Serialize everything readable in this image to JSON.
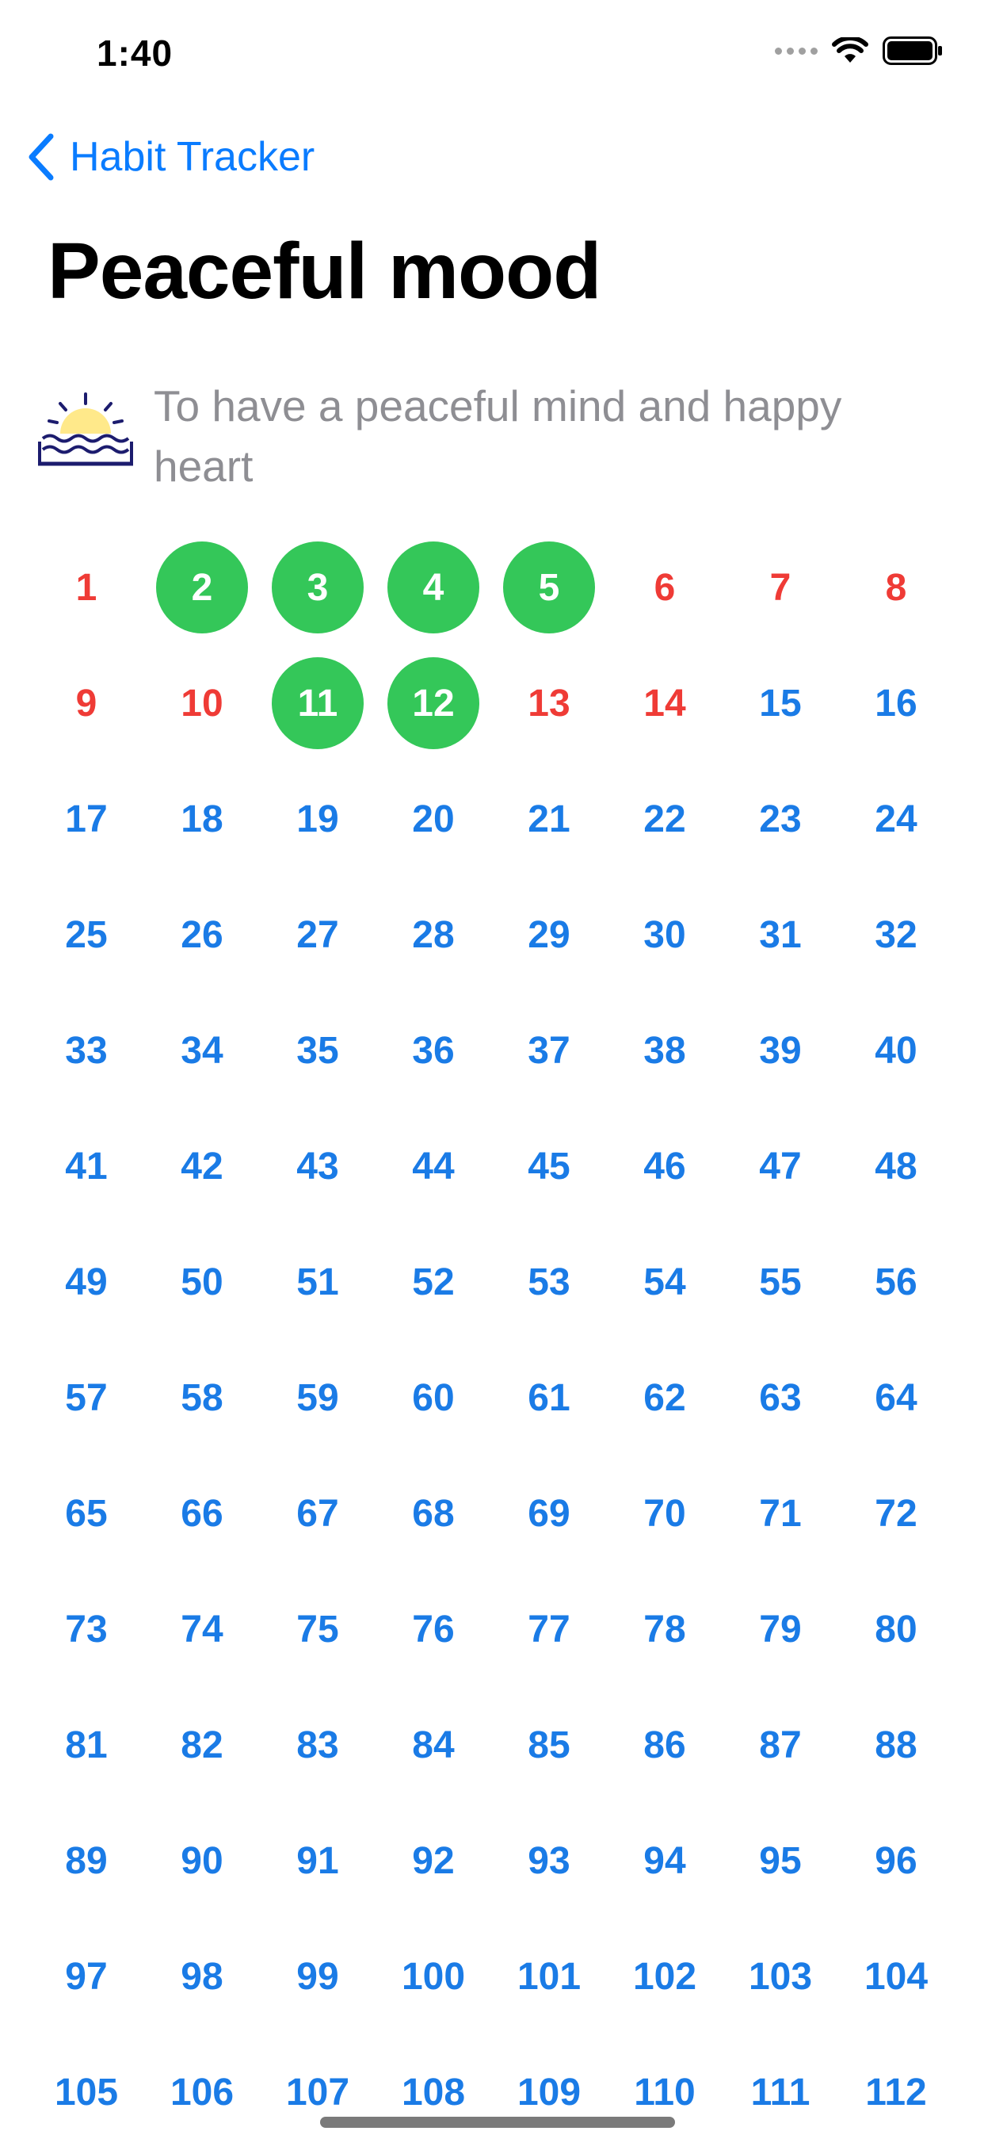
{
  "status": {
    "time": "1:40"
  },
  "nav": {
    "back_label": "Habit Tracker"
  },
  "habit": {
    "title": "Peaceful mood",
    "description": "To have a peaceful mind and happy heart",
    "icon": "sunrise-over-water-icon"
  },
  "colors": {
    "accent": "#1a7be6",
    "completed": "#34c759",
    "missed": "#ef3b36"
  },
  "grid": {
    "total_days": 112,
    "completed_days": [
      2,
      3,
      4,
      5,
      11,
      12
    ],
    "missed_days": [
      1,
      6,
      7,
      8,
      9,
      10,
      13,
      14
    ]
  }
}
